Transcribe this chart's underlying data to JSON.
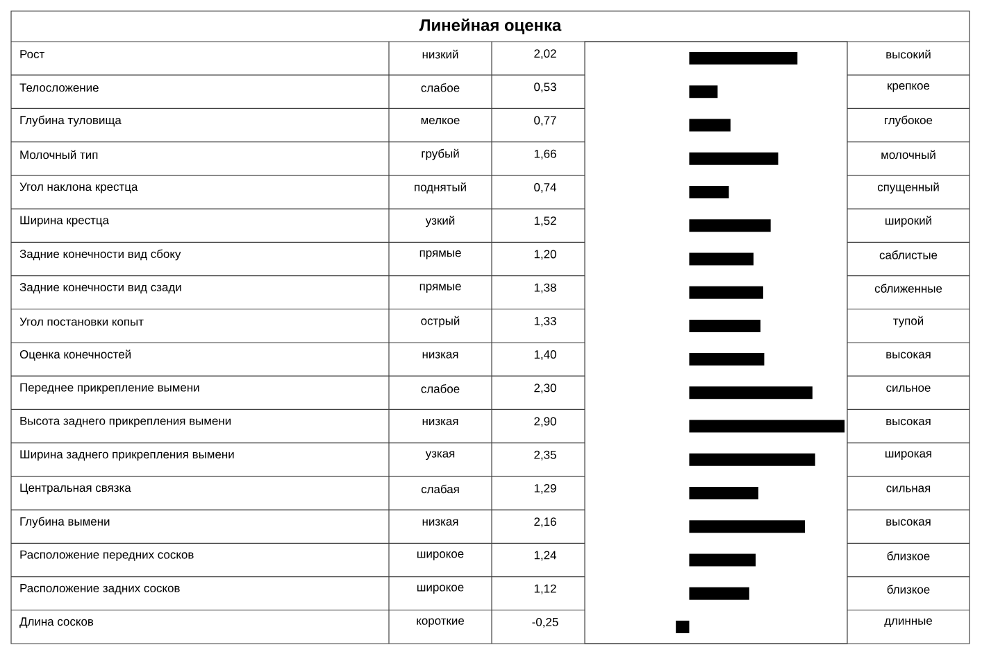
{
  "chart_data": {
    "type": "bar",
    "orientation": "horizontal",
    "title": "Линейная оценка",
    "categories": [
      "Рост",
      "Телосложение",
      "Глубина туловища",
      "Молочный тип",
      "Угол наклона крестца",
      "Ширина крестца",
      "Задние конечности вид сбоку",
      "Задние конечности вид сзади",
      "Угол постановки копыт",
      "Оценка конечностей",
      "Переднее прикрепление вымени",
      "Высота заднего прикрепления вымени",
      "Ширина заднего прикрепления вымени",
      "Центральная связка",
      "Глубина вымени",
      "Расположение передних сосков",
      "Расположение задних сосков",
      "Длина сосков"
    ],
    "values": [
      2.02,
      0.53,
      0.77,
      1.66,
      0.74,
      1.52,
      1.2,
      1.38,
      1.33,
      1.4,
      2.3,
      2.9,
      2.35,
      1.29,
      2.16,
      1.24,
      1.12,
      -0.25
    ],
    "value_labels": [
      "2,02",
      "0,53",
      "0,77",
      "1,66",
      "0,74",
      "1,52",
      "1,20",
      "1,38",
      "1,33",
      "1,40",
      "2,30",
      "2,90",
      "2,35",
      "1,29",
      "2,16",
      "1,24",
      "1,12",
      "-0,25"
    ],
    "color": "#000000",
    "xlim": [
      -1.95,
      2.95
    ],
    "tick_labels": false,
    "annotations": [
      "низкий",
      "высокий",
      "слабое",
      "крепкое",
      "мелкое",
      "глубокое",
      "грубый",
      "молочный",
      "поднятый",
      "спущенный",
      "узкий",
      "широкий",
      "прямые",
      "саблистые",
      "прямые",
      "сближенные",
      "острый",
      "тупой",
      "низкая",
      "высокая",
      "слабое",
      "сильное",
      "низкая",
      "высокая",
      "узкая",
      "широкая",
      "слабая",
      "сильная",
      "низкая",
      "высокая",
      "широкое",
      "близкое",
      "широкое",
      "близкое",
      "короткие",
      "длинные"
    ]
  }
}
